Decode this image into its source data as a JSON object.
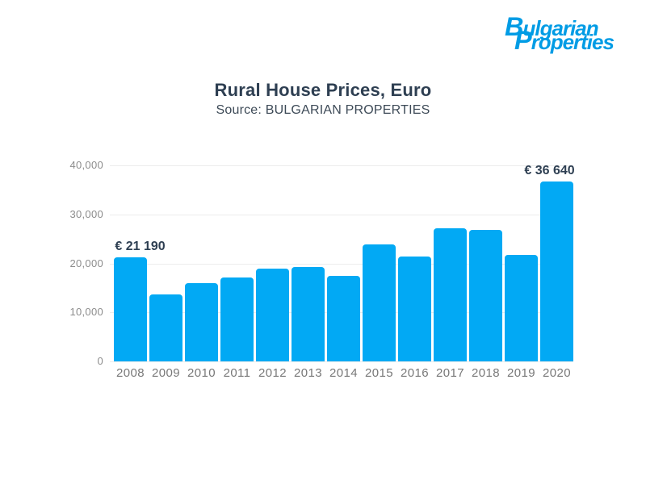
{
  "logo": {
    "line1": "Bulgarian",
    "line2": "Properties",
    "color": "#009ce5"
  },
  "chart_data": {
    "type": "bar",
    "title": "Rural House Prices, Euro",
    "subtitle": "Source: BULGARIAN PROPERTIES",
    "categories": [
      "2008",
      "2009",
      "2010",
      "2011",
      "2012",
      "2013",
      "2014",
      "2015",
      "2016",
      "2017",
      "2018",
      "2019",
      "2020"
    ],
    "values": [
      21190,
      13600,
      16000,
      17200,
      19000,
      19300,
      17500,
      23800,
      21400,
      27200,
      26800,
      21800,
      36640
    ],
    "value_labels": [
      {
        "category": "2008",
        "label": "€ 21 190"
      },
      {
        "category": "2020",
        "label": "€ 36 640"
      }
    ],
    "xlabel": "",
    "ylabel": "",
    "ylim": [
      0,
      40000
    ],
    "yticks": [
      {
        "value": 0,
        "label": "0"
      },
      {
        "value": 10000,
        "label": "10,000"
      },
      {
        "value": 20000,
        "label": "20,000"
      },
      {
        "value": 30000,
        "label": "30,000"
      },
      {
        "value": 40000,
        "label": "40,000"
      }
    ],
    "grid": true,
    "legend": false,
    "bar_color": "#02a9f4"
  },
  "colors": {
    "background": "#ffffff",
    "brand_blue": "#009ce5",
    "bar_blue": "#02a9f4",
    "title_text": "#2e3f52",
    "subtitle_text": "#3d4a57",
    "annotation_text": "#2e3f52",
    "y_axis_text": "#8c8c8c",
    "x_axis_text": "#787878",
    "gridline": "#ececec"
  }
}
